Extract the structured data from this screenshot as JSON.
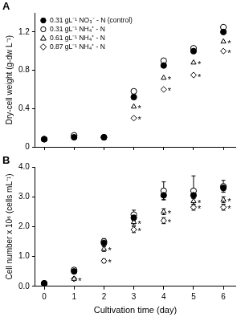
{
  "chart_data": [
    {
      "type": "scatter",
      "title": "A",
      "y_label": "Dry-cell weight (g-dw L⁻¹)",
      "x": [
        0,
        1,
        2,
        3,
        4,
        5,
        6
      ],
      "xlim": [
        -0.3,
        6.4
      ],
      "xticks": [
        0,
        1,
        2,
        3,
        4,
        5,
        6
      ],
      "ylim": [
        0,
        1.4
      ],
      "yticks": [
        0,
        0.4,
        0.8,
        1.2
      ],
      "grid": false,
      "legend": "upper left",
      "tick_labels": "y",
      "series": [
        {
          "name": "0.31 gL⁻¹ NO₃⁻ - N (control)",
          "color": "#000000",
          "marker": "filled circle",
          "values": [
            0.08,
            0.1,
            0.1,
            0.52,
            0.85,
            1.0,
            1.2
          ]
        },
        {
          "name": "0.31 gL⁻¹ NH₄⁺ - N",
          "color": "#000000",
          "marker": "open circle",
          "values": [
            0.08,
            0.12,
            0.1,
            0.58,
            0.9,
            1.03,
            1.25
          ]
        },
        {
          "name": "0.61 gL⁻¹ NH₄⁺ - N",
          "color": "#000000",
          "marker": "open triangle",
          "values": [
            0.08,
            0.1,
            0.1,
            0.42,
            0.72,
            0.88,
            1.1
          ]
        },
        {
          "name": "0.87 gL⁻¹ NH₄⁺ - N",
          "color": "#000000",
          "marker": "open diamond",
          "values": [
            0.08,
            0.12,
            0.1,
            0.3,
            0.6,
            0.75,
            1.0
          ]
        }
      ],
      "annotations": [
        {
          "text": "*",
          "x": 3,
          "y": 0.42
        },
        {
          "text": "*",
          "x": 3,
          "y": 0.3
        },
        {
          "text": "*",
          "x": 4,
          "y": 0.72
        },
        {
          "text": "*",
          "x": 4,
          "y": 0.6
        },
        {
          "text": "*",
          "x": 5,
          "y": 0.88
        },
        {
          "text": "*",
          "x": 5,
          "y": 0.75
        },
        {
          "text": "*",
          "x": 6,
          "y": 1.1
        },
        {
          "text": "*",
          "x": 6,
          "y": 1.0
        }
      ]
    },
    {
      "type": "scatter",
      "title": "B",
      "x_label": "Cultivation time (day)",
      "y_label": "Cell number x 10⁶ (cells mL⁻¹)",
      "x": [
        0,
        1,
        2,
        3,
        4,
        5,
        6
      ],
      "xlim": [
        -0.3,
        6.4
      ],
      "xticks": [
        0,
        1,
        2,
        3,
        4,
        5,
        6
      ],
      "ylim": [
        0,
        4
      ],
      "yticks": [
        {
          "value": 0,
          "label": "0.0"
        },
        {
          "value": 1,
          "label": "1.0"
        },
        {
          "value": 2,
          "label": "2.0"
        },
        {
          "value": 3,
          "label": "3.0"
        },
        {
          "value": 4,
          "label": "4.0"
        }
      ],
      "grid": false,
      "series": [
        {
          "name": "0.31 gL⁻¹ NO₃⁻ - N (control)",
          "color": "#000000",
          "marker": "filled circle",
          "values": [
            0.1,
            0.5,
            1.45,
            2.3,
            3.05,
            3.05,
            3.3
          ],
          "errors": [
            0.02,
            0.05,
            0.08,
            0.1,
            0.15,
            0.1,
            0.1
          ]
        },
        {
          "name": "0.31 gL⁻¹ NH₄⁺ - N",
          "color": "#000000",
          "marker": "open circle",
          "values": [
            0.1,
            0.55,
            1.5,
            2.4,
            3.2,
            3.2,
            3.35
          ],
          "errors": [
            0.02,
            0.05,
            0.1,
            0.15,
            0.3,
            0.5,
            0.2
          ]
        },
        {
          "name": "0.61 gL⁻¹ NH₄⁺ - N",
          "color": "#000000",
          "marker": "open triangle",
          "values": [
            0.1,
            0.25,
            1.25,
            2.15,
            2.5,
            2.85,
            2.9
          ],
          "errors": [
            0.02,
            0.03,
            0.08,
            0.1,
            0.1,
            0.1,
            0.1
          ]
        },
        {
          "name": "0.87 gL⁻¹ NH₄⁺ - N",
          "color": "#000000",
          "marker": "open diamond",
          "values": [
            0.1,
            0.25,
            0.85,
            1.9,
            2.2,
            2.65,
            2.65
          ],
          "errors": [
            0.02,
            0.03,
            0.06,
            0.1,
            0.1,
            0.1,
            0.1
          ]
        }
      ],
      "annotations": [
        {
          "text": "*",
          "x": 1,
          "y": 0.25
        },
        {
          "text": "*",
          "x": 2,
          "y": 1.25
        },
        {
          "text": "*",
          "x": 2,
          "y": 0.85
        },
        {
          "text": "*",
          "x": 3,
          "y": 2.15
        },
        {
          "text": "*",
          "x": 3,
          "y": 1.9
        },
        {
          "text": "*",
          "x": 4,
          "y": 2.5
        },
        {
          "text": "*",
          "x": 4,
          "y": 2.2
        },
        {
          "text": "*",
          "x": 5,
          "y": 2.85
        },
        {
          "text": "*",
          "x": 5,
          "y": 2.65
        },
        {
          "text": "*",
          "x": 6,
          "y": 2.9
        },
        {
          "text": "*",
          "x": 6,
          "y": 2.65
        }
      ]
    }
  ]
}
